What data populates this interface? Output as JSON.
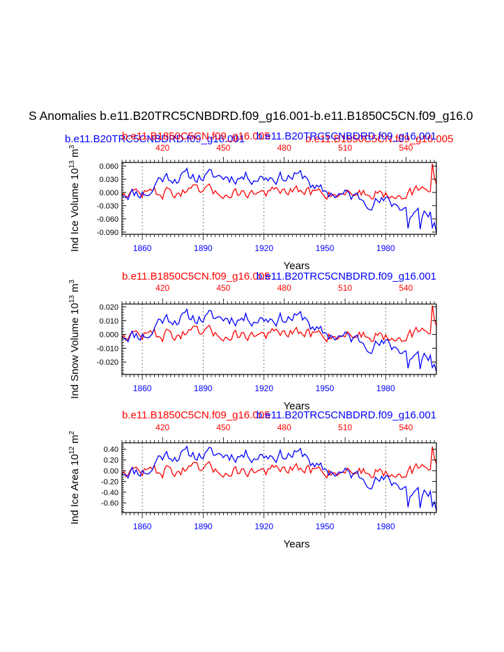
{
  "page_title": "S Anomalies b.e11.B20TRC5CNBDRD.f09_g16.001-b.e11.B1850C5CN.f09_g16.0",
  "top_legend": {
    "blue_label": "b.e11.B20TRC5CNBDRD.f09_g16.001",
    "red_label": "b.e11.B1850C5CN.f09_g16.005"
  },
  "colors": {
    "control": "#ff0000",
    "experiment": "#0000ff",
    "axis": "#000000"
  },
  "chart_data": [
    {
      "type": "line",
      "panel": 1,
      "header_left": "b.e11.B1850C5CN.f09_g16.005",
      "header_right": "b.e11.B20TRC5CNBDRD.f09_g16.001",
      "ylabel": "Ind Ice Volume",
      "ylabel_unit": "10",
      "ylabel_exp": "13",
      "ylabel_unit2": " m",
      "ylabel_exp2": "3",
      "xlabel": "Years",
      "ylim": [
        -0.095,
        0.068
      ],
      "yticks": [
        "0.060",
        "0.030",
        "0.000",
        "-0.030",
        "-0.060",
        "-0.090"
      ],
      "yvals": [
        0.06,
        0.03,
        0.0,
        -0.03,
        -0.06,
        -0.09
      ],
      "x_bottom": {
        "range": [
          1850,
          2005
        ],
        "ticks": [
          1860,
          1890,
          1920,
          1950,
          1980
        ]
      },
      "x_top": {
        "range": [
          400,
          555
        ],
        "ticks": [
          420,
          450,
          480,
          510,
          540
        ]
      },
      "series": [
        {
          "name": "b.e11.B20TRC5CNBDRD.f09_g16.001",
          "color": "#0000ff",
          "seed": 11,
          "amp": 0.018,
          "trend_end": -0.04,
          "drop": -0.09
        },
        {
          "name": "b.e11.B1850C5CN.f09_g16.005",
          "color": "#ff0000",
          "seed": 47,
          "amp": 0.016,
          "trend_end": 0.0,
          "spike": 0.065
        }
      ]
    },
    {
      "type": "line",
      "panel": 2,
      "header_left": "b.e11.B1850C5CN.f09_g16.005",
      "header_right": "b.e11.B20TRC5CNBDRD.f09_g16.001",
      "ylabel": "Ind Snow Volume",
      "ylabel_unit": "10",
      "ylabel_exp": "13",
      "ylabel_unit2": " m",
      "ylabel_exp2": "3",
      "xlabel": "Years",
      "ylim": [
        -0.029,
        0.022
      ],
      "yticks": [
        "0.020",
        "0.010",
        "0.000",
        "-0.010",
        "-0.020"
      ],
      "yvals": [
        0.02,
        0.01,
        0.0,
        -0.01,
        -0.02
      ],
      "x_bottom": {
        "range": [
          1850,
          2005
        ],
        "ticks": [
          1860,
          1890,
          1920,
          1950,
          1980
        ]
      },
      "x_top": {
        "range": [
          400,
          555
        ],
        "ticks": [
          420,
          450,
          480,
          510,
          540
        ]
      },
      "series": [
        {
          "name": "b.e11.B20TRC5CNBDRD.f09_g16.001",
          "color": "#0000ff",
          "seed": 11,
          "amp": 0.006,
          "trend_end": -0.014,
          "drop": -0.027
        },
        {
          "name": "b.e11.B1850C5CN.f09_g16.005",
          "color": "#ff0000",
          "seed": 47,
          "amp": 0.0055,
          "trend_end": 0.0,
          "spike": 0.021
        }
      ]
    },
    {
      "type": "line",
      "panel": 3,
      "header_left": "b.e11.B1850C5CN.f09_g16.005",
      "header_right": "b.e11.B20TRC5CNBDRD.f09_g16.001",
      "ylabel": "Ind Ice Area",
      "ylabel_unit": "10",
      "ylabel_exp": "12",
      "ylabel_unit2": "  m",
      "ylabel_exp2": "2",
      "xlabel": "Years",
      "ylim": [
        -0.78,
        0.52
      ],
      "yticks": [
        "0.40",
        "0.20",
        "0.00",
        "-0.20",
        "-0.40",
        "-0.60"
      ],
      "yvals": [
        0.4,
        0.2,
        0.0,
        -0.2,
        -0.4,
        -0.6
      ],
      "x_bottom": {
        "range": [
          1850,
          2005
        ],
        "ticks": [
          1860,
          1890,
          1920,
          1950,
          1980
        ]
      },
      "x_top": {
        "range": [
          400,
          555
        ],
        "ticks": [
          420,
          450,
          480,
          510,
          540
        ]
      },
      "series": [
        {
          "name": "b.e11.B20TRC5CNBDRD.f09_g16.001",
          "color": "#0000ff",
          "seed": 11,
          "amp": 0.15,
          "trend_end": -0.35,
          "drop": -0.75
        },
        {
          "name": "b.e11.B1850C5CN.f09_g16.005",
          "color": "#ff0000",
          "seed": 47,
          "amp": 0.14,
          "trend_end": 0.0,
          "spike": 0.45
        }
      ]
    }
  ]
}
